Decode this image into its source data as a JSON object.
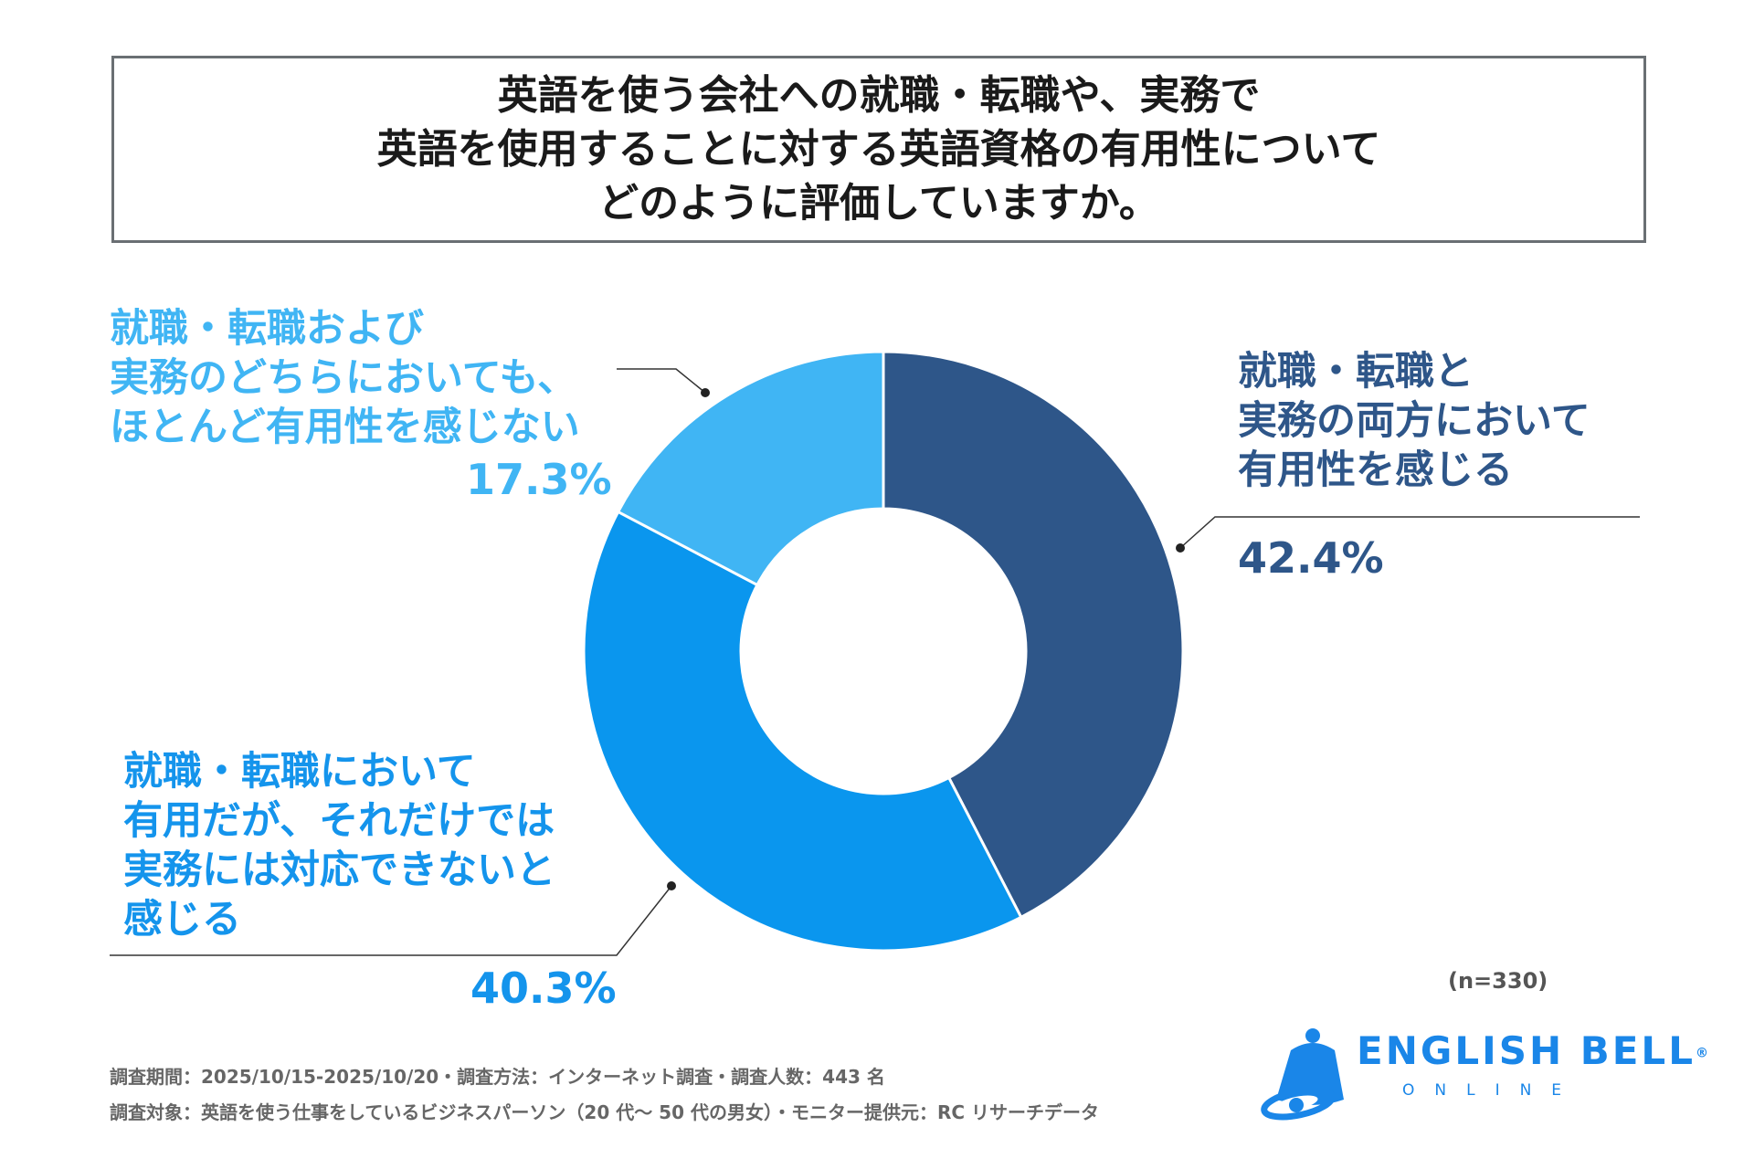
{
  "title": {
    "lines": [
      "英語を使う会社への就職・転職や、実務で",
      "英語を使用することに対する英語資格の有用性について",
      "どのように評価していますか。"
    ]
  },
  "chart_data": {
    "type": "pie",
    "style": "donut",
    "title": "英語を使う会社への就職・転職や、実務で英語を使用することに対する英語資格の有用性についてどのように評価していますか。",
    "slices": [
      {
        "label_lines": [
          "就職・転職と",
          "実務の両方において",
          "有用性を感じる"
        ],
        "value": 42.4,
        "value_label": "42.4%",
        "color": "#2e5689"
      },
      {
        "label_lines": [
          "就職・転職において",
          "有用だが、それだけでは",
          "実務には対応できないと",
          "感じる"
        ],
        "value": 40.3,
        "value_label": "40.3%",
        "color": "#0a96ee"
      },
      {
        "label_lines": [
          "就職・転職および",
          "実務のどちらにおいても、",
          "ほとんど有用性を感じない"
        ],
        "value": 17.3,
        "value_label": "17.3%",
        "color": "#40b5f4"
      }
    ],
    "sample_note": "(n=330)"
  },
  "footnotes": [
    "調査期間：2025/10/15-2025/10/20・調査方法：インターネット調査・調査人数：443 名",
    "調査対象：英語を使う仕事をしているビジネスパーソン（20 代～ 50 代の男女）・モニター提供元：RC リサーチデータ"
  ],
  "logo": {
    "brand": "ENGLISH BELL",
    "registered": "®",
    "sub": "ONLINE"
  },
  "colors": {
    "divider": "#ffffff",
    "leader": "#333333",
    "title_border": "#6a6f73",
    "brand": "#1a86e8"
  }
}
